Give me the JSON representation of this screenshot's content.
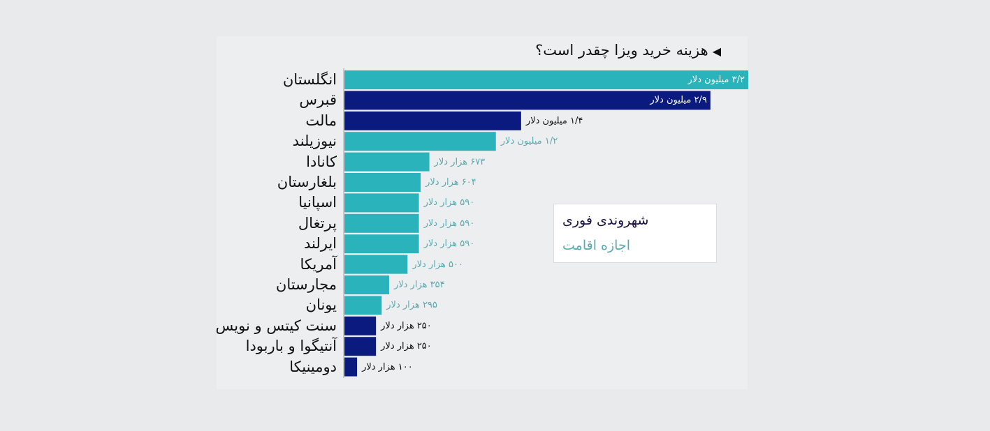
{
  "colors": {
    "residence": "#2bb3bb",
    "citizenship": "#0a1a7e",
    "residence_label": "#5aa9b0",
    "background": "#e9eaec"
  },
  "title_icon": "triangle-left-icon",
  "chart_data": {
    "type": "bar",
    "orientation": "horizontal",
    "title": "هزینه خرید ویزا چقدر است؟",
    "unit": "thousand USD",
    "xlim": [
      0,
      3200
    ],
    "grid": false,
    "legend": {
      "placement": "right",
      "entries": [
        {
          "name": "شهروندی فوری",
          "series": "citizenship"
        },
        {
          "name": "اجازه اقامت",
          "series": "residence"
        }
      ]
    },
    "categories": [
      "انگلستان",
      "قبرس",
      "مالت",
      "نیوزیلند",
      "کانادا",
      "بلغارستان",
      "اسپانیا",
      "پرتغال",
      "ایرلند",
      "آمریکا",
      "مجارستان",
      "یونان",
      "سنت کیتس و نویس",
      "آنتیگوا و باربودا",
      "دومینیکا"
    ],
    "values": [
      3200,
      2900,
      1400,
      1200,
      673,
      604,
      590,
      590,
      590,
      500,
      354,
      295,
      250,
      250,
      100
    ],
    "series_type": [
      "residence",
      "citizenship",
      "citizenship",
      "residence",
      "residence",
      "residence",
      "residence",
      "residence",
      "residence",
      "residence",
      "residence",
      "residence",
      "citizenship",
      "citizenship",
      "citizenship"
    ],
    "data_labels": [
      "۳/۲ میلیون دلار",
      "۲/۹ میلیون دلار",
      "۱/۴ میلیون دلار",
      "۱/۲ میلیون دلار",
      "۶۷۳ هزار دلار",
      "۶۰۴ هزار دلار",
      "۵۹۰ هزار دلار",
      "۵۹۰ هزار دلار",
      "۵۹۰ هزار دلار",
      "۵۰۰ هزار دلار",
      "۳۵۴ هزار دلار",
      "۲۹۵ هزار دلار",
      "۲۵۰ هزار دلار",
      "۲۵۰ هزار دلار",
      "۱۰۰ هزار دلار"
    ]
  }
}
